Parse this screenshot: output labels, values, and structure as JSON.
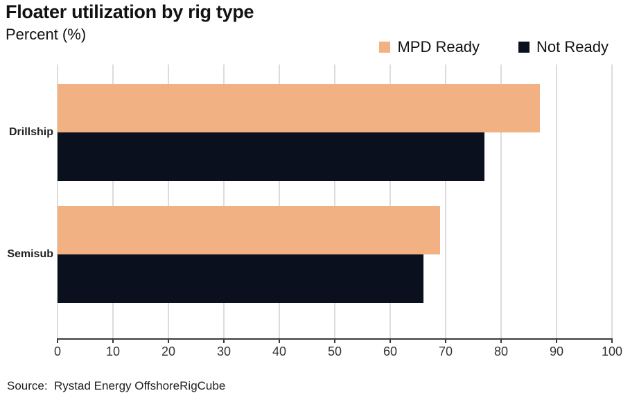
{
  "chart_data": {
    "type": "bar",
    "orientation": "horizontal",
    "title": "Floater utilization by rig type",
    "subtitle": "Percent (%)",
    "categories": [
      "Drillship",
      "Semisub"
    ],
    "series": [
      {
        "name": "MPD Ready",
        "color": "#F2B183",
        "values": [
          87,
          69
        ]
      },
      {
        "name": "Not Ready",
        "color": "#0A101D",
        "values": [
          77,
          66
        ]
      }
    ],
    "xlim": [
      0,
      100
    ],
    "xticks": [
      0,
      10,
      20,
      30,
      40,
      50,
      60,
      70,
      80,
      90,
      100
    ],
    "grid": "vertical",
    "legend_position": "top-right"
  },
  "source": "Source:  Rystad Energy OffshoreRigCube",
  "colors": {
    "gridline": "#DCDCDC",
    "axis": "#3A3A3A",
    "text": "#121212"
  }
}
